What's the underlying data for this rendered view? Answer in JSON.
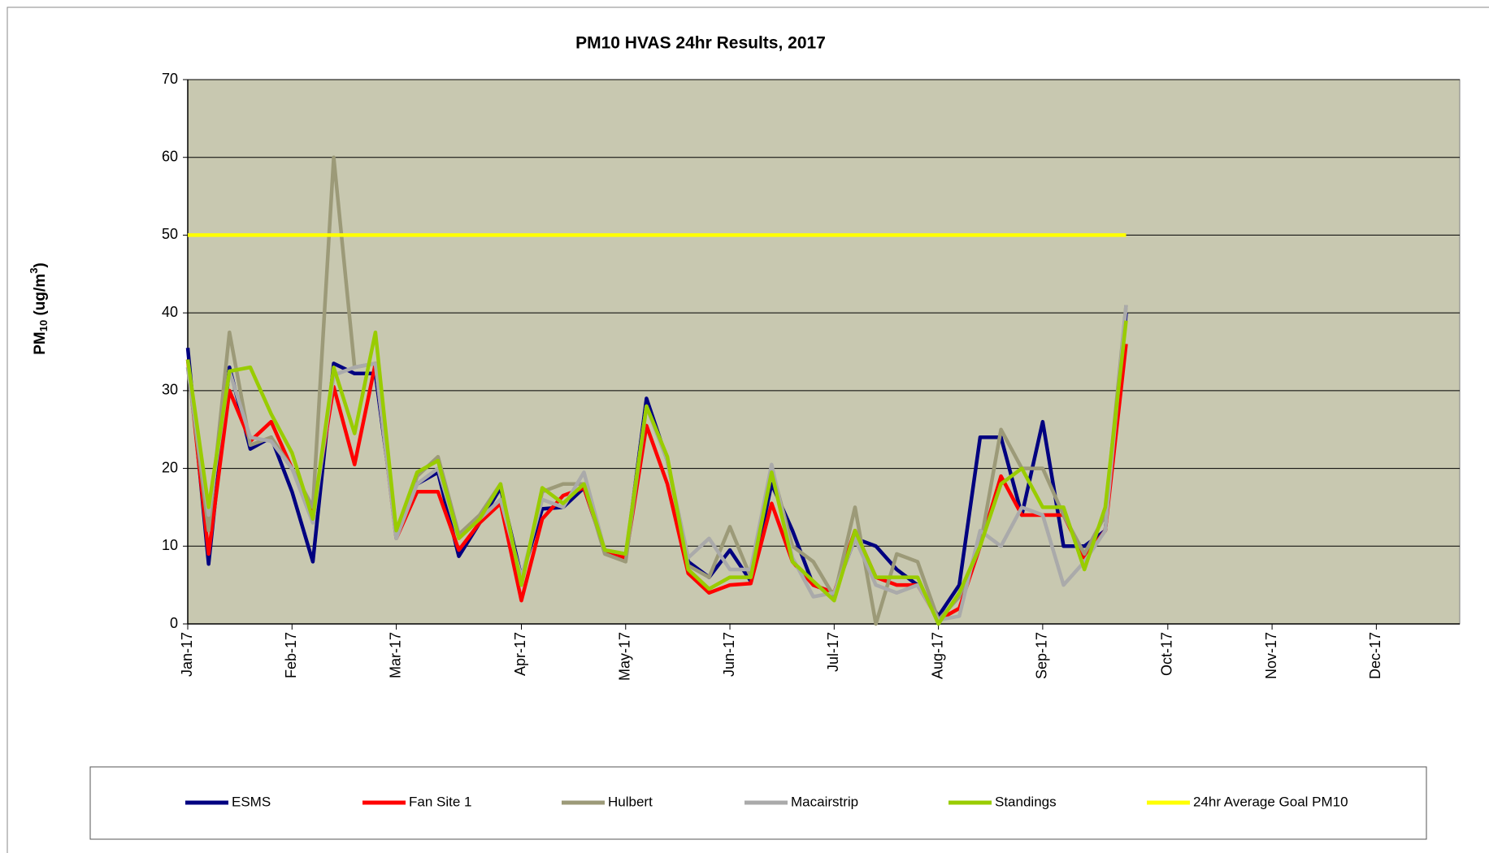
{
  "chart_data": {
    "type": "line",
    "title": "PM10 HVAS 24hr Results, 2017",
    "y_label": [
      "PM",
      "10",
      " (ug/m",
      "3",
      ")"
    ],
    "categories": [
      "Jan-17",
      null,
      null,
      null,
      null,
      "Feb-17",
      null,
      null,
      null,
      null,
      "Mar-17",
      null,
      null,
      null,
      null,
      null,
      "Apr-17",
      null,
      null,
      null,
      null,
      "May-17",
      null,
      null,
      null,
      null,
      "Jun-17",
      null,
      null,
      null,
      null,
      "Jul-17",
      null,
      null,
      null,
      null,
      "Aug-17",
      null,
      null,
      null,
      null,
      "Sep-17",
      null,
      null,
      null,
      null,
      null,
      "Oct-17",
      null,
      null,
      null,
      null,
      "Nov-17",
      null,
      null,
      null,
      null,
      "Dec-17",
      null,
      null,
      null,
      null
    ],
    "ylim": [
      0,
      70
    ],
    "yticks": [
      0,
      10,
      20,
      30,
      40,
      50,
      60,
      70
    ],
    "grid": true,
    "series": [
      {
        "name": "ESMS",
        "color": "#000080",
        "values": [
          35.5,
          7.7,
          33,
          22.5,
          24,
          17,
          8,
          33.5,
          32.2,
          32.2,
          12,
          18,
          19.5,
          8.7,
          13,
          17.5,
          6,
          14.8,
          15,
          17.5,
          9.5,
          8.5,
          29,
          21,
          8,
          6,
          9.5,
          5.5,
          18,
          12,
          5,
          4,
          11,
          10,
          7,
          5,
          1,
          5,
          24,
          24,
          14,
          26,
          10,
          10,
          12,
          40,
          null,
          null,
          null,
          null,
          null,
          null,
          null,
          null,
          null,
          null,
          null,
          null,
          null,
          null,
          null,
          null
        ]
      },
      {
        "name": "Fan Site 1",
        "color": "#ff0000",
        "values": [
          34,
          9,
          30,
          23.5,
          26,
          20,
          14,
          30.5,
          20.5,
          33.5,
          11,
          17,
          17,
          9.5,
          13,
          15.5,
          3,
          13.5,
          16.5,
          17.5,
          9.5,
          8.5,
          25.5,
          18,
          6.5,
          4,
          5,
          5.2,
          15.5,
          8,
          5,
          4,
          12,
          6,
          5,
          5,
          0.5,
          2,
          10,
          19,
          14,
          14,
          14,
          8.5,
          12,
          36,
          null,
          null,
          null,
          null,
          null,
          null,
          null,
          null,
          null,
          null,
          null,
          null,
          null,
          null,
          null,
          null
        ]
      },
      {
        "name": "Hulbert",
        "color": "#9c9a78",
        "values": [
          33,
          12,
          37.5,
          23,
          24,
          20,
          15,
          60,
          33,
          33.5,
          11,
          19,
          21.5,
          11.5,
          14,
          18,
          5,
          17,
          18,
          18,
          9,
          8,
          28,
          21,
          7.5,
          6,
          12.5,
          6,
          20,
          10,
          8,
          3.5,
          15,
          0,
          9,
          8,
          0.5,
          3.5,
          10,
          25,
          20,
          20,
          14,
          9,
          14,
          41,
          null,
          null,
          null,
          null,
          null,
          null,
          null,
          null,
          null,
          null,
          null,
          null,
          null,
          null,
          null,
          null
        ]
      },
      {
        "name": "Macairstrip",
        "color": "#aaaaaa",
        "values": [
          33,
          14,
          32.5,
          24,
          23.5,
          20,
          13,
          32,
          33,
          33.5,
          11,
          18,
          20,
          11,
          13.5,
          16,
          6,
          16,
          15,
          19.5,
          9.5,
          9,
          28,
          21,
          8.5,
          11,
          7,
          7,
          20.5,
          8.5,
          3.5,
          4,
          11,
          5,
          4,
          5,
          0.5,
          1,
          12,
          10,
          15,
          14,
          5,
          8,
          12,
          41,
          null,
          null,
          null,
          null,
          null,
          null,
          null,
          null,
          null,
          null,
          null,
          null,
          null,
          null,
          null,
          null
        ]
      },
      {
        "name": "Standings",
        "color": "#99cc00",
        "values": [
          34,
          15,
          32.5,
          33,
          27,
          22,
          13.5,
          33,
          24.5,
          37.5,
          12,
          19.5,
          21,
          11,
          13.5,
          18,
          5,
          17.5,
          15.5,
          18,
          9.5,
          9,
          28,
          21.5,
          7,
          4.5,
          6,
          6,
          19.5,
          8,
          5.5,
          3,
          12,
          6,
          6,
          6,
          0,
          4,
          10,
          18,
          20,
          15,
          15,
          7,
          15,
          39,
          null,
          null,
          null,
          null,
          null,
          null,
          null,
          null,
          null,
          null,
          null,
          null,
          null,
          null,
          null,
          null
        ]
      },
      {
        "name": "24hr Average Goal PM10",
        "color": "#ffff00",
        "values": [
          50,
          50,
          50,
          50,
          50,
          50,
          50,
          50,
          50,
          50,
          50,
          50,
          50,
          50,
          50,
          50,
          50,
          50,
          50,
          50,
          50,
          50,
          50,
          50,
          50,
          50,
          50,
          50,
          50,
          50,
          50,
          50,
          50,
          50,
          50,
          50,
          50,
          50,
          50,
          50,
          50,
          50,
          50,
          50,
          50,
          50,
          null,
          null,
          null,
          null,
          null,
          null,
          null,
          null,
          null,
          null,
          null,
          null,
          null,
          null,
          null,
          null
        ]
      }
    ]
  }
}
